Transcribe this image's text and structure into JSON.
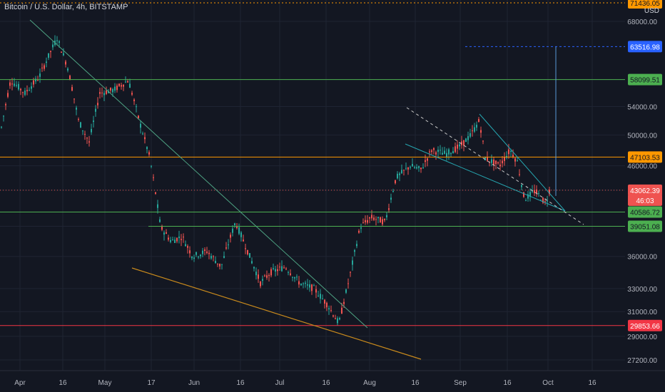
{
  "header": {
    "symbol_title": "Bitcoin / U.S. Dollar, 4h, BITSTAMP",
    "currency": "USD"
  },
  "colors": {
    "background": "#131722",
    "grid": "#1f2433",
    "up": "#26a69a",
    "down": "#ef5350",
    "green_line": "#4caf50",
    "orange_line": "#ff9800",
    "red_line": "#f23645",
    "trend_green": "#4ea383",
    "trend_orange": "#c98a1c",
    "teal": "#26a6b0",
    "blue": "#2962ff"
  },
  "price_axis": {
    "ticks": [
      "68000.00",
      "54000.00",
      "50000.00",
      "46000.00",
      "36000.00",
      "33000.00",
      "31000.00",
      "29000.00",
      "27200.00"
    ]
  },
  "time_axis": {
    "ticks": [
      "Apr",
      "16",
      "May",
      "17",
      "Jun",
      "16",
      "Jul",
      "16",
      "Aug",
      "16",
      "Sep",
      "16",
      "Oct",
      "16"
    ]
  },
  "price_labels": [
    {
      "text": "71436.05",
      "color": "#ff9800",
      "text_color": "#131722"
    },
    {
      "text": "63516.98",
      "color": "#2962ff",
      "text_color": "#ffffff"
    },
    {
      "text": "58099.51",
      "color": "#4caf50",
      "text_color": "#131722"
    },
    {
      "text": "47103.53",
      "color": "#ff9800",
      "text_color": "#131722"
    },
    {
      "text": "43062.39",
      "color": "#ef5350",
      "text_color": "#ffffff"
    },
    {
      "text": "46:03",
      "color": "#ef5350",
      "text_color": "#ffffff"
    },
    {
      "text": "40586.72",
      "color": "#4caf50",
      "text_color": "#131722"
    },
    {
      "text": "39051.08",
      "color": "#4caf50",
      "text_color": "#131722"
    },
    {
      "text": "29853.66",
      "color": "#f23645",
      "text_color": "#ffffff"
    }
  ],
  "horizontal_lines": [
    {
      "price": 58099.51,
      "color": "#4caf50"
    },
    {
      "price": 47103.53,
      "color": "#ff9800"
    },
    {
      "price": 40586.72,
      "color": "#4caf50"
    },
    {
      "price": 39051.08,
      "color": "#4caf50"
    },
    {
      "price": 29853.66,
      "color": "#f23645"
    },
    {
      "price": 71436.05,
      "color": "#ff9800",
      "style": "dotted"
    }
  ],
  "current_price": 43062.39,
  "target_price": 63516.98
}
